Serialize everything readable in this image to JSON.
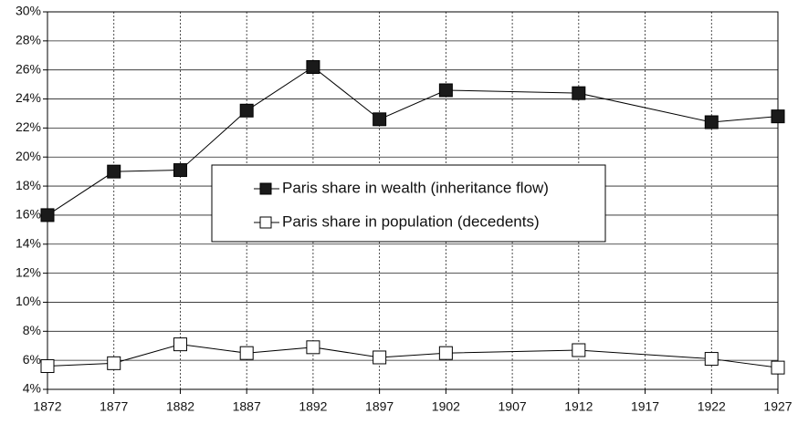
{
  "chart_data": {
    "type": "line",
    "x": [
      1872,
      1877,
      1882,
      1887,
      1892,
      1897,
      1902,
      1912,
      1922,
      1927
    ],
    "series": [
      {
        "name": "Paris share in wealth (inheritance flow)",
        "color": "#000000",
        "marker_fill": "#1a1a1a",
        "values": [
          16.0,
          19.0,
          19.1,
          23.2,
          26.2,
          22.6,
          24.6,
          24.4,
          22.4,
          22.8
        ]
      },
      {
        "name": "Paris share in population (decedents)",
        "color": "#000000",
        "marker_fill": "#ffffff",
        "values": [
          5.6,
          5.8,
          7.1,
          6.5,
          6.9,
          6.2,
          6.5,
          6.7,
          6.1,
          5.5
        ]
      }
    ],
    "xlim": [
      1872,
      1927
    ],
    "xticks": [
      1872,
      1877,
      1882,
      1887,
      1892,
      1897,
      1902,
      1907,
      1912,
      1917,
      1922,
      1927
    ],
    "ylim": [
      4,
      30
    ],
    "yticks": [
      {
        "value": 4,
        "label": "4%"
      },
      {
        "value": 6,
        "label": "6%"
      },
      {
        "value": 8,
        "label": "8%"
      },
      {
        "value": 10,
        "label": "10%"
      },
      {
        "value": 12,
        "label": "12%"
      },
      {
        "value": 14,
        "label": "14%"
      },
      {
        "value": 16,
        "label": "16%"
      },
      {
        "value": 18,
        "label": "18%"
      },
      {
        "value": 20,
        "label": "20%"
      },
      {
        "value": 22,
        "label": "22%"
      },
      {
        "value": 24,
        "label": "24%"
      },
      {
        "value": 26,
        "label": "26%"
      },
      {
        "value": 28,
        "label": "28%"
      },
      {
        "value": 30,
        "label": "30%"
      }
    ],
    "grid": true
  }
}
